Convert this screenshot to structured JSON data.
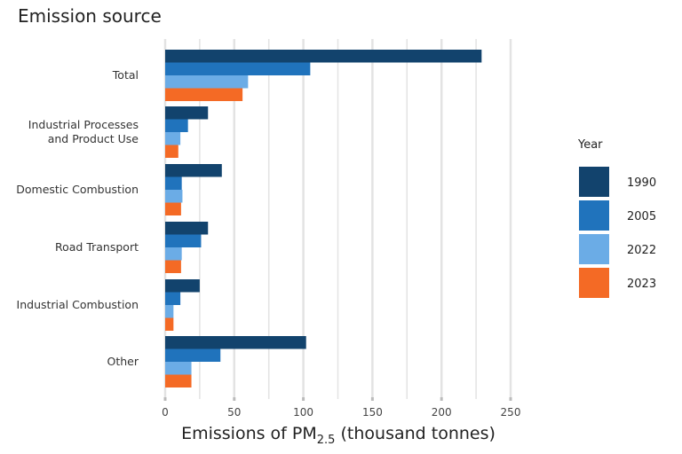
{
  "chart_data": {
    "type": "bar",
    "orientation": "horizontal",
    "title": "Emission source",
    "xlabel": "Emissions of PM",
    "xlabel_subscript": "2.5",
    "xlabel_suffix": " (thousand tonnes)",
    "ylabel": "",
    "xlim": [
      0,
      250
    ],
    "xticks": [
      0,
      50,
      100,
      150,
      200,
      250
    ],
    "grid": true,
    "legend": {
      "title": "Year",
      "placement": "right"
    },
    "categories": [
      [
        "Total"
      ],
      [
        "Industrial Processes",
        "and Product Use"
      ],
      [
        "Domestic Combustion"
      ],
      [
        "Road Transport"
      ],
      [
        "Industrial Combustion"
      ],
      [
        "Other"
      ]
    ],
    "series": [
      {
        "name": "1990",
        "color": "#12436D",
        "values": [
          229,
          31,
          41,
          31,
          25,
          102
        ]
      },
      {
        "name": "2005",
        "color": "#2073BC",
        "values": [
          105,
          16.5,
          12,
          26,
          11,
          40
        ]
      },
      {
        "name": "2022",
        "color": "#6BACE6",
        "values": [
          60,
          11,
          12.5,
          12,
          6,
          19
        ]
      },
      {
        "name": "2023",
        "color": "#F46A25",
        "values": [
          56,
          9.5,
          11.5,
          11.5,
          6,
          19
        ]
      }
    ]
  }
}
